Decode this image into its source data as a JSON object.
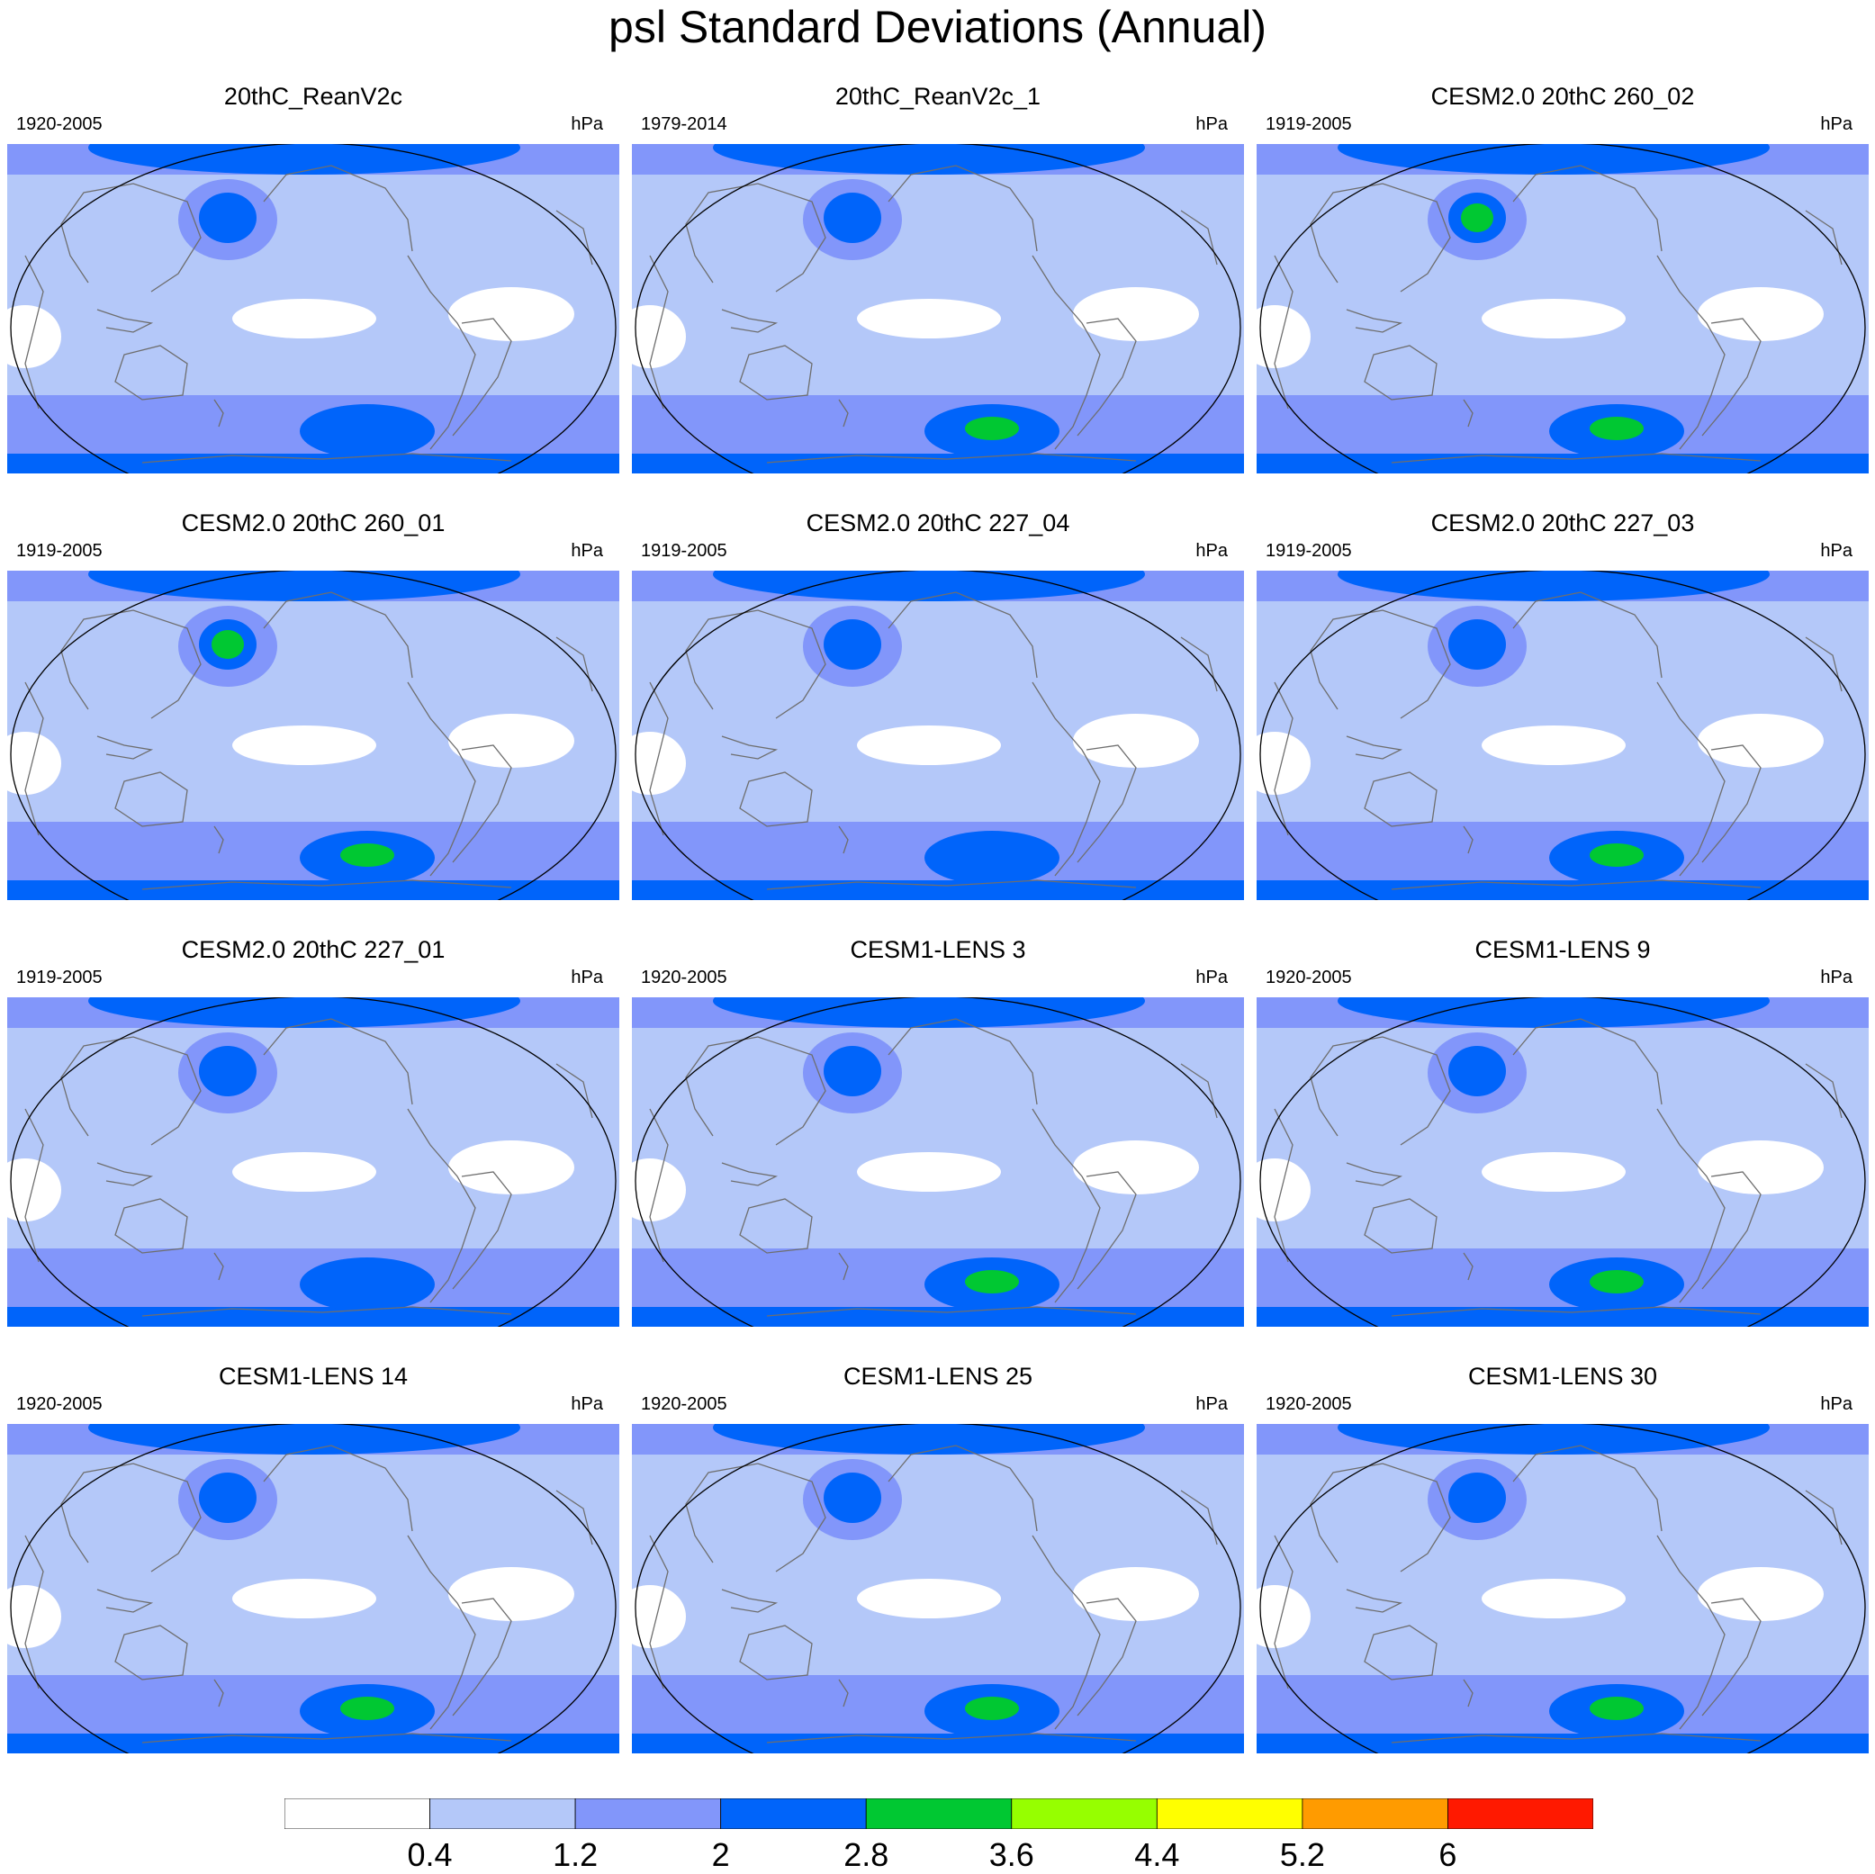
{
  "figure": {
    "title": "psl Standard Deviations (Annual)",
    "units": "hPa"
  },
  "chart_data": {
    "type": "contour-map-panels",
    "title": "psl Standard Deviations (Annual)",
    "variable": "psl",
    "units": "hPa",
    "projection": "Robinson, Pacific-centered",
    "colorbar": {
      "levels": [
        0.4,
        1.2,
        2,
        2.8,
        3.6,
        4.4,
        5.2,
        6
      ],
      "labels": [
        "0.4",
        "1.2",
        "2",
        "2.8",
        "3.6",
        "4.4",
        "5.2",
        "6"
      ],
      "colors": [
        "#ffffff",
        "#b4c8f9",
        "#8296fa",
        "#0064fa",
        "#00c832",
        "#96ff00",
        "#ffff00",
        "#ff9b00",
        "#ff1900"
      ]
    },
    "panels": [
      {
        "name": "20thC_ReanV2c",
        "years": "1920-2005",
        "nh_max": 2.8,
        "sh_max": 2.8
      },
      {
        "name": "20thC_ReanV2c_1",
        "years": "1979-2014",
        "nh_max": 2.8,
        "sh_max": 3.6
      },
      {
        "name": "CESM2.0 20thC 260_02",
        "years": "1919-2005",
        "nh_max": 3.6,
        "sh_max": 3.6
      },
      {
        "name": "CESM2.0 20thC 260_01",
        "years": "1919-2005",
        "nh_max": 3.6,
        "sh_max": 3.6
      },
      {
        "name": "CESM2.0 20thC 227_04",
        "years": "1919-2005",
        "nh_max": 2.8,
        "sh_max": 2.8
      },
      {
        "name": "CESM2.0 20thC 227_03",
        "years": "1919-2005",
        "nh_max": 2.8,
        "sh_max": 3.6
      },
      {
        "name": "CESM2.0 20thC 227_01",
        "years": "1919-2005",
        "nh_max": 2.8,
        "sh_max": 2.8
      },
      {
        "name": "CESM1-LENS 3",
        "years": "1920-2005",
        "nh_max": 2.8,
        "sh_max": 3.6
      },
      {
        "name": "CESM1-LENS 9",
        "years": "1920-2005",
        "nh_max": 2.8,
        "sh_max": 3.6
      },
      {
        "name": "CESM1-LENS 14",
        "years": "1920-2005",
        "nh_max": 2.8,
        "sh_max": 3.6
      },
      {
        "name": "CESM1-LENS 25",
        "years": "1920-2005",
        "nh_max": 2.8,
        "sh_max": 3.6
      },
      {
        "name": "CESM1-LENS 30",
        "years": "1920-2005",
        "nh_max": 2.8,
        "sh_max": 3.6
      }
    ]
  }
}
